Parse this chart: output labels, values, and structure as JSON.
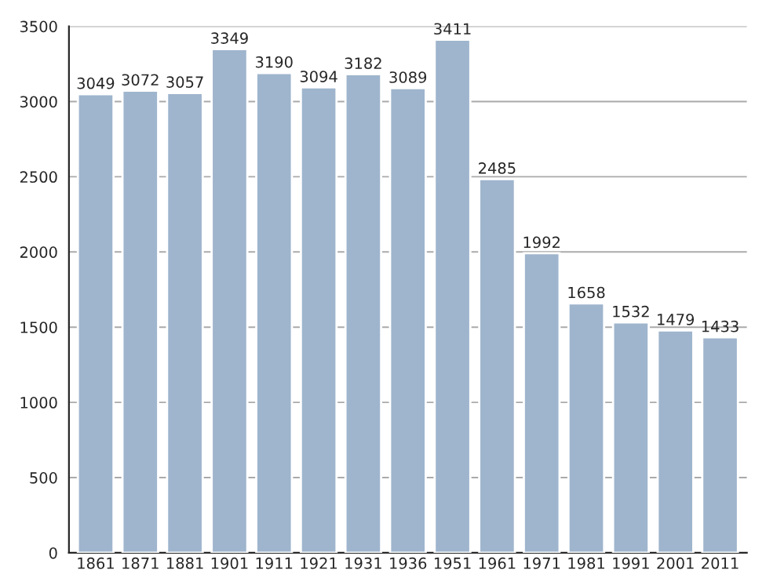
{
  "chart_data": {
    "type": "bar",
    "categories": [
      "1861",
      "1871",
      "1881",
      "1901",
      "1911",
      "1921",
      "1931",
      "1936",
      "1951",
      "1961",
      "1971",
      "1981",
      "1991",
      "2001",
      "2011"
    ],
    "values": [
      3049,
      3072,
      3057,
      3349,
      3190,
      3094,
      3182,
      3089,
      3411,
      2485,
      1992,
      1658,
      1532,
      1479,
      1433
    ],
    "color": "#9fb5cd",
    "ylim": [
      0,
      3500
    ],
    "yticks": [
      0,
      500,
      1000,
      1500,
      2000,
      2500,
      3000,
      3500
    ],
    "grid": "y",
    "data_labels": true
  }
}
